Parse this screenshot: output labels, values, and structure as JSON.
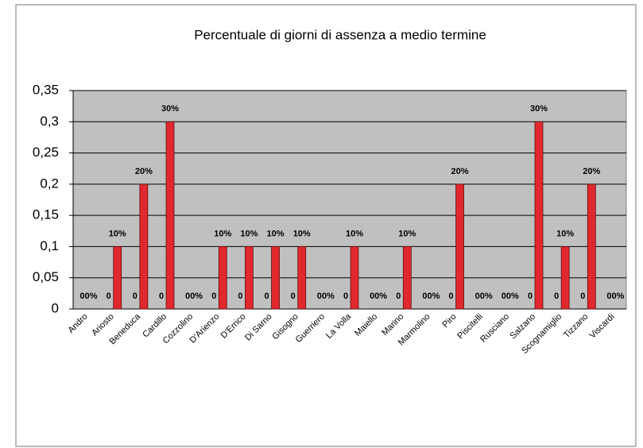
{
  "chart_data": {
    "type": "bar",
    "title": "Percentuale di giorni di assenza a medio termine",
    "categories": [
      "Andro",
      "Ariosto",
      "Beneduca",
      "Cardillo",
      "Cozzolino",
      "D'Arienzo",
      "D'Errico",
      "Di Sarno",
      "Gisogno",
      "Guerriero",
      "La Volla",
      "Maiello",
      "Marino",
      "Marmolino",
      "Piro",
      "Piscitelli",
      "Rusciano",
      "Salzano",
      "Scognamiglio",
      "Tizzano",
      "Viscardi"
    ],
    "series": [
      {
        "values": [
          0,
          0,
          0,
          0,
          0,
          0,
          0,
          0,
          0,
          0,
          0,
          0,
          0,
          0,
          0,
          0,
          0,
          0,
          0,
          0,
          0
        ]
      },
      {
        "color": "#e0282e",
        "values": [
          0,
          0.1,
          0.2,
          0.3,
          0,
          0.1,
          0.1,
          0.1,
          0.1,
          0,
          0.1,
          0,
          0.1,
          0,
          0.2,
          0,
          0,
          0.3,
          0.1,
          0.2,
          0
        ],
        "value_labels": [
          "0%",
          "10%",
          "20%",
          "30%",
          "0%",
          "10%",
          "10%",
          "10%",
          "10%",
          "0%",
          "10%",
          "0%",
          "10%",
          "0%",
          "20%",
          "0%",
          "0%",
          "30%",
          "10%",
          "20%",
          "0%"
        ]
      }
    ],
    "ylim": [
      0,
      0.35
    ],
    "yticks": [
      0,
      {
        "value": 0.05,
        "label": "0,05"
      },
      {
        "value": 0.1,
        "label": "0,1"
      },
      {
        "value": 0.15,
        "label": "0,15"
      },
      {
        "value": 0.2,
        "label": "0,2"
      },
      {
        "value": 0.25,
        "label": "0,25"
      },
      {
        "value": 0.3,
        "label": "0,3"
      },
      {
        "value": 0.35,
        "label": "0,35"
      }
    ],
    "grid": true
  }
}
